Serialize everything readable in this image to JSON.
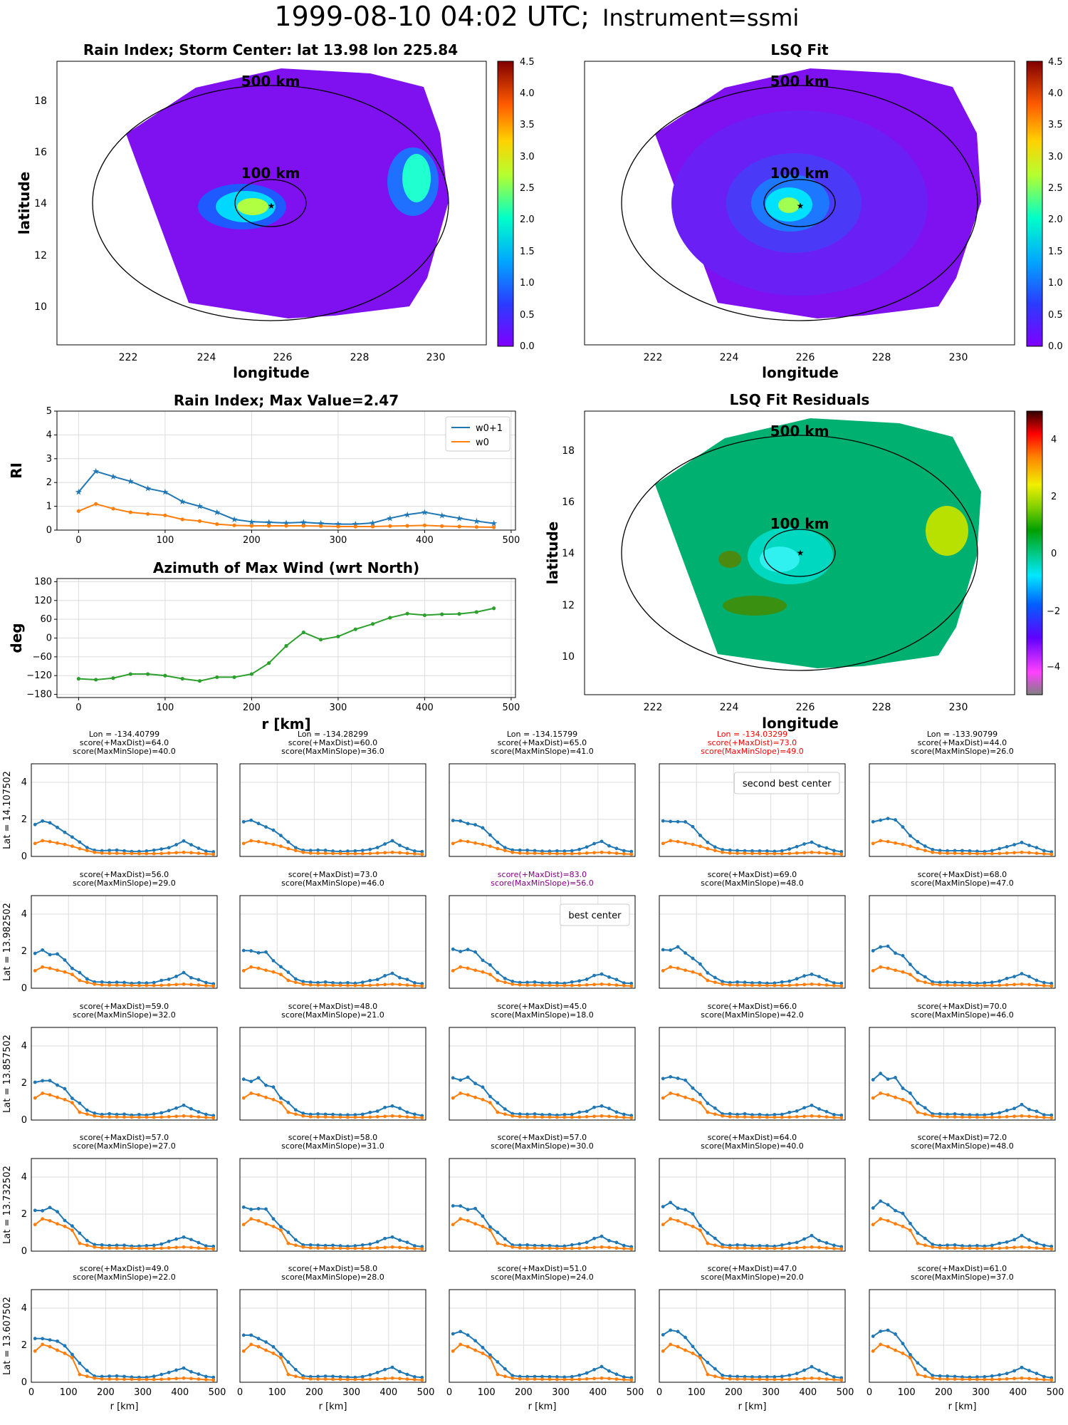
{
  "suptitle": {
    "date": "1999-08-10 04:02 UTC;",
    "instrument": "Instrument=ssmi"
  },
  "colors": {
    "w0p1": "#1f77b4",
    "w0": "#ff7f0e",
    "azimuth": "#2ca02c",
    "highlight_red": "#ff0000",
    "highlight_purple": "#800080"
  },
  "maps": [
    {
      "title": "Rain Index; Storm Center: lat 13.98 lon 225.84",
      "xlabel": "longitude",
      "ylabel": "latitude",
      "xticks": [
        "222",
        "224",
        "226",
        "228",
        "230"
      ],
      "yticks": [
        "10",
        "12",
        "14",
        "16",
        "18"
      ],
      "ring_labels": [
        "500 km",
        "100 km"
      ],
      "colorbar_ticks": [
        "0.0",
        "0.5",
        "1.0",
        "1.5",
        "2.0",
        "2.5",
        "3.0",
        "3.5",
        "4.0",
        "4.5"
      ],
      "colormap": "jet",
      "center": {
        "lat": 13.98,
        "lon": 225.84
      }
    },
    {
      "title": "LSQ Fit",
      "xlabel": "longitude",
      "ylabel": "",
      "xticks": [
        "222",
        "224",
        "226",
        "228",
        "230"
      ],
      "yticks": [],
      "ring_labels": [
        "500 km",
        "100 km"
      ],
      "colorbar_ticks": [
        "0.0",
        "0.5",
        "1.0",
        "1.5",
        "2.0",
        "2.5",
        "3.0",
        "3.5",
        "4.0",
        "4.5"
      ],
      "colormap": "jet"
    },
    {
      "title": "LSQ Fit Residuals",
      "xlabel": "longitude",
      "ylabel": "latitude",
      "xticks": [
        "222",
        "224",
        "226",
        "228",
        "230"
      ],
      "yticks": [
        "10",
        "12",
        "14",
        "16",
        "18"
      ],
      "ring_labels": [
        "500 km",
        "100 km"
      ],
      "colorbar_ticks": [
        "−4",
        "−2",
        "0",
        "2",
        "4"
      ],
      "colormap": "gist_ncar"
    }
  ],
  "chart_data": [
    {
      "type": "line",
      "title": "Rain Index; Max Value=2.47",
      "xlabel": "",
      "ylabel": "RI",
      "xlim": [
        -25,
        505
      ],
      "ylim": [
        0,
        5
      ],
      "x": [
        0,
        20,
        40,
        60,
        80,
        100,
        120,
        140,
        160,
        180,
        200,
        220,
        240,
        260,
        280,
        300,
        320,
        340,
        360,
        380,
        400,
        420,
        440,
        460,
        480
      ],
      "series": [
        {
          "name": "w0+1",
          "values": [
            1.6,
            2.47,
            2.25,
            2.05,
            1.75,
            1.6,
            1.2,
            1.0,
            0.75,
            0.45,
            0.35,
            0.33,
            0.3,
            0.33,
            0.28,
            0.25,
            0.25,
            0.3,
            0.5,
            0.65,
            0.75,
            0.62,
            0.5,
            0.38,
            0.28
          ]
        },
        {
          "name": "w0",
          "values": [
            0.8,
            1.1,
            0.9,
            0.75,
            0.68,
            0.62,
            0.45,
            0.38,
            0.25,
            0.2,
            0.18,
            0.18,
            0.18,
            0.18,
            0.17,
            0.15,
            0.15,
            0.15,
            0.17,
            0.18,
            0.2,
            0.17,
            0.15,
            0.13,
            0.12
          ]
        }
      ]
    },
    {
      "type": "line",
      "title": "Azimuth of Max Wind (wrt North)",
      "xlabel": "r [km]",
      "ylabel": "deg",
      "xlim": [
        -25,
        505
      ],
      "ylim": [
        -190,
        190
      ],
      "x": [
        0,
        20,
        40,
        60,
        80,
        100,
        120,
        140,
        160,
        180,
        200,
        220,
        240,
        260,
        280,
        300,
        320,
        340,
        360,
        380,
        400,
        420,
        440,
        460,
        480
      ],
      "series": [
        {
          "name": "",
          "values": [
            -130,
            -133,
            -128,
            -115,
            -115,
            -120,
            -130,
            -137,
            -125,
            -125,
            -115,
            -80,
            -25,
            18,
            -5,
            5,
            28,
            45,
            65,
            78,
            73,
            76,
            77,
            83,
            95
          ]
        }
      ]
    },
    {
      "type": "line",
      "grid_rows": 5,
      "grid_cols": 5,
      "xlabel": "r [km]",
      "xticks": [
        "0",
        "100",
        "200",
        "300",
        "400",
        "500"
      ],
      "yticks": [
        "0",
        "2",
        "4"
      ],
      "ylim": [
        0,
        5
      ],
      "xlim": [
        0,
        500
      ],
      "row_labels": [
        "Lat = 14.107502",
        "Lat = 13.982502",
        "Lat = 13.857502",
        "Lat = 13.732502",
        "Lat = 13.607502"
      ],
      "col_lons": [
        "Lon = -134.40799",
        "Lon = -134.28299",
        "Lon = -134.15799",
        "Lon = -134.03299",
        "Lon = -133.90799"
      ],
      "cells": [
        [
          {
            "s1": "score(+MaxDist)=64.0",
            "s2": "score(MaxMinSlope)=40.0"
          },
          {
            "s1": "score(+MaxDist)=60.0",
            "s2": "score(MaxMinSlope)=36.0"
          },
          {
            "s1": "score(+MaxDist)=65.0",
            "s2": "score(MaxMinSlope)=41.0"
          },
          {
            "s1": "score(+MaxDist)=73.0",
            "s2": "score(MaxMinSlope)=49.0",
            "hl": "red",
            "legend": "second best center"
          },
          {
            "s1": "score(+MaxDist)=44.0",
            "s2": "score(MaxMinSlope)=26.0"
          }
        ],
        [
          {
            "s1": "score(+MaxDist)=56.0",
            "s2": "score(MaxMinSlope)=29.0"
          },
          {
            "s1": "score(+MaxDist)=73.0",
            "s2": "score(MaxMinSlope)=46.0"
          },
          {
            "s1": "score(+MaxDist)=83.0",
            "s2": "score(MaxMinSlope)=56.0",
            "hl": "purple",
            "legend": "best center"
          },
          {
            "s1": "score(+MaxDist)=69.0",
            "s2": "score(MaxMinSlope)=48.0"
          },
          {
            "s1": "score(+MaxDist)=68.0",
            "s2": "score(MaxMinSlope)=47.0"
          }
        ],
        [
          {
            "s1": "score(+MaxDist)=59.0",
            "s2": "score(MaxMinSlope)=32.0"
          },
          {
            "s1": "score(+MaxDist)=48.0",
            "s2": "score(MaxMinSlope)=21.0"
          },
          {
            "s1": "score(+MaxDist)=45.0",
            "s2": "score(MaxMinSlope)=18.0"
          },
          {
            "s1": "score(+MaxDist)=66.0",
            "s2": "score(MaxMinSlope)=42.0"
          },
          {
            "s1": "score(+MaxDist)=70.0",
            "s2": "score(MaxMinSlope)=46.0"
          }
        ],
        [
          {
            "s1": "score(+MaxDist)=57.0",
            "s2": "score(MaxMinSlope)=27.0"
          },
          {
            "s1": "score(+MaxDist)=58.0",
            "s2": "score(MaxMinSlope)=31.0"
          },
          {
            "s1": "score(+MaxDist)=57.0",
            "s2": "score(MaxMinSlope)=30.0"
          },
          {
            "s1": "score(+MaxDist)=64.0",
            "s2": "score(MaxMinSlope)=40.0"
          },
          {
            "s1": "score(+MaxDist)=72.0",
            "s2": "score(MaxMinSlope)=48.0"
          }
        ],
        [
          {
            "s1": "score(+MaxDist)=49.0",
            "s2": "score(MaxMinSlope)=22.0"
          },
          {
            "s1": "score(+MaxDist)=58.0",
            "s2": "score(MaxMinSlope)=28.0"
          },
          {
            "s1": "score(+MaxDist)=51.0",
            "s2": "score(MaxMinSlope)=24.0"
          },
          {
            "s1": "score(+MaxDist)=47.0",
            "s2": "score(MaxMinSlope)=20.0"
          },
          {
            "s1": "score(+MaxDist)=61.0",
            "s2": "score(MaxMinSlope)=37.0"
          }
        ]
      ]
    }
  ]
}
